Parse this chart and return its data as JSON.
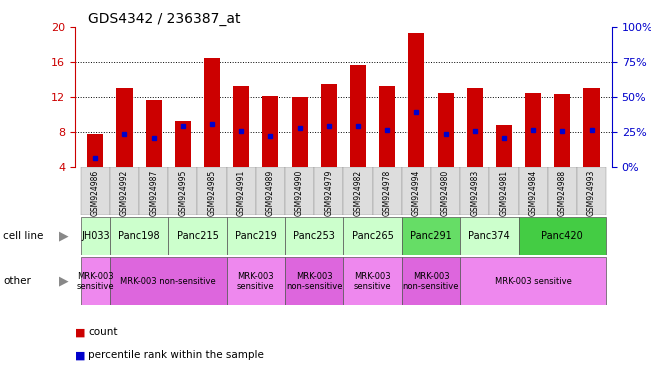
{
  "title": "GDS4342 / 236387_at",
  "samples": [
    "GSM924986",
    "GSM924992",
    "GSM924987",
    "GSM924995",
    "GSM924985",
    "GSM924991",
    "GSM924989",
    "GSM924990",
    "GSM924979",
    "GSM924982",
    "GSM924978",
    "GSM924994",
    "GSM924980",
    "GSM924983",
    "GSM924981",
    "GSM924984",
    "GSM924988",
    "GSM924993"
  ],
  "counts": [
    7.8,
    13.0,
    11.6,
    9.2,
    16.5,
    13.2,
    12.1,
    12.0,
    13.5,
    15.6,
    13.3,
    19.3,
    12.5,
    13.0,
    8.8,
    12.5,
    12.3,
    13.0
  ],
  "percentile_values": [
    5.0,
    7.8,
    7.3,
    8.7,
    8.9,
    8.1,
    7.5,
    8.5,
    8.7,
    8.7,
    8.2,
    10.3,
    7.8,
    8.1,
    7.3,
    8.2,
    8.1,
    8.2
  ],
  "bar_bottom": 4.0,
  "ylim_left": [
    4,
    20
  ],
  "ylim_right": [
    0,
    100
  ],
  "yticks_left": [
    4,
    8,
    12,
    16,
    20
  ],
  "yticks_right": [
    0,
    25,
    50,
    75,
    100
  ],
  "ytick_labels_right": [
    "0%",
    "25%",
    "50%",
    "75%",
    "100%"
  ],
  "cell_lines": [
    {
      "name": "JH033",
      "start": 0,
      "end": 1,
      "color": "#ccffcc"
    },
    {
      "name": "Panc198",
      "start": 1,
      "end": 3,
      "color": "#ccffcc"
    },
    {
      "name": "Panc215",
      "start": 3,
      "end": 5,
      "color": "#ccffcc"
    },
    {
      "name": "Panc219",
      "start": 5,
      "end": 7,
      "color": "#ccffcc"
    },
    {
      "name": "Panc253",
      "start": 7,
      "end": 9,
      "color": "#ccffcc"
    },
    {
      "name": "Panc265",
      "start": 9,
      "end": 11,
      "color": "#ccffcc"
    },
    {
      "name": "Panc291",
      "start": 11,
      "end": 13,
      "color": "#66dd66"
    },
    {
      "name": "Panc374",
      "start": 13,
      "end": 15,
      "color": "#ccffcc"
    },
    {
      "name": "Panc420",
      "start": 15,
      "end": 18,
      "color": "#44cc44"
    }
  ],
  "other_groups": [
    {
      "label": "MRK-003\nsensitive",
      "start": 0,
      "end": 1,
      "color": "#ee88ee"
    },
    {
      "label": "MRK-003 non-sensitive",
      "start": 1,
      "end": 5,
      "color": "#dd66dd"
    },
    {
      "label": "MRK-003\nsensitive",
      "start": 5,
      "end": 7,
      "color": "#ee88ee"
    },
    {
      "label": "MRK-003\nnon-sensitive",
      "start": 7,
      "end": 9,
      "color": "#dd66dd"
    },
    {
      "label": "MRK-003\nsensitive",
      "start": 9,
      "end": 11,
      "color": "#ee88ee"
    },
    {
      "label": "MRK-003\nnon-sensitive",
      "start": 11,
      "end": 13,
      "color": "#dd66dd"
    },
    {
      "label": "MRK-003 sensitive",
      "start": 13,
      "end": 18,
      "color": "#ee88ee"
    }
  ],
  "bar_color": "#cc0000",
  "percentile_color": "#0000cc",
  "grid_color": "#000000",
  "background_color": "#ffffff",
  "left_axis_color": "#cc0000",
  "right_axis_color": "#0000cc"
}
